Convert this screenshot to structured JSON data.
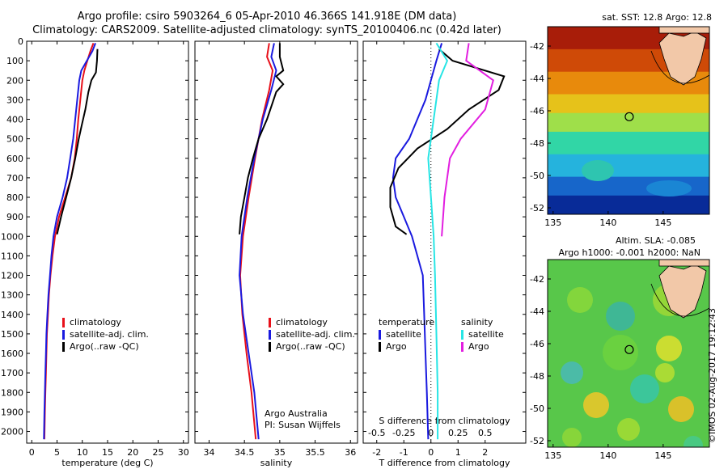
{
  "header": {
    "title_line1": "Argo profile: csiro 5903264_6 05-Apr-2010 46.366S 141.918E (DM data)",
    "title_line2": "Climatology: CARS2009. Satellite-adjusted climatology: synTS_20100406.nc (0.42d later)"
  },
  "colors": {
    "climatology": "#e8101a",
    "satellite": "#1a1adf",
    "argo": "#000000",
    "salinity_sat": "#27e5e5",
    "salinity_argo": "#e21ee0"
  },
  "chart_data": [
    {
      "type": "line",
      "id": "temperature",
      "xlabel": "temperature (deg C)",
      "ylabel": "",
      "xlim": [
        -1,
        31
      ],
      "ylim": [
        2060,
        0
      ],
      "xticks": [
        0,
        5,
        10,
        15,
        20,
        25,
        30
      ],
      "yticks": [
        0,
        100,
        200,
        300,
        400,
        500,
        600,
        700,
        800,
        900,
        1000,
        1100,
        1200,
        1300,
        1400,
        1500,
        1600,
        1700,
        1800,
        1900,
        2000
      ],
      "legend": [
        "climatology",
        "satellite-adj. clim.",
        "Argo(..raw -QC)"
      ],
      "series": [
        {
          "name": "climatology",
          "points": [
            [
              12.2,
              10
            ],
            [
              11.6,
              50
            ],
            [
              11.0,
              100
            ],
            [
              10.4,
              150
            ],
            [
              10.0,
              200
            ],
            [
              9.6,
              300
            ],
            [
              9.2,
              400
            ],
            [
              8.9,
              500
            ],
            [
              8.5,
              600
            ],
            [
              7.8,
              700
            ],
            [
              6.6,
              800
            ],
            [
              5.4,
              900
            ],
            [
              4.6,
              1000
            ],
            [
              4.1,
              1100
            ],
            [
              3.7,
              1200
            ],
            [
              3.4,
              1300
            ],
            [
              3.2,
              1400
            ],
            [
              3.0,
              1500
            ],
            [
              2.9,
              1600
            ],
            [
              2.8,
              1700
            ],
            [
              2.7,
              1800
            ],
            [
              2.6,
              1900
            ],
            [
              2.5,
              2040
            ]
          ]
        },
        {
          "name": "satellite-adj. clim.",
          "points": [
            [
              12.6,
              10
            ],
            [
              12.0,
              50
            ],
            [
              10.9,
              100
            ],
            [
              9.8,
              150
            ],
            [
              9.4,
              200
            ],
            [
              9.0,
              300
            ],
            [
              8.6,
              400
            ],
            [
              8.2,
              500
            ],
            [
              7.6,
              600
            ],
            [
              7.0,
              700
            ],
            [
              6.1,
              800
            ],
            [
              5.0,
              900
            ],
            [
              4.3,
              1000
            ],
            [
              3.9,
              1100
            ],
            [
              3.6,
              1200
            ],
            [
              3.3,
              1300
            ],
            [
              3.1,
              1400
            ],
            [
              2.9,
              1500
            ],
            [
              2.8,
              1600
            ],
            [
              2.7,
              1700
            ],
            [
              2.6,
              1800
            ],
            [
              2.5,
              1900
            ],
            [
              2.4,
              2040
            ]
          ]
        },
        {
          "name": "Argo(..raw -QC)",
          "points": [
            [
              13.0,
              40
            ],
            [
              12.9,
              100
            ],
            [
              12.7,
              160
            ],
            [
              11.8,
              200
            ],
            [
              11.2,
              260
            ],
            [
              10.6,
              350
            ],
            [
              9.9,
              430
            ],
            [
              9.3,
              500
            ],
            [
              8.6,
              600
            ],
            [
              7.8,
              700
            ],
            [
              6.8,
              800
            ],
            [
              5.8,
              900
            ],
            [
              5.0,
              990
            ]
          ]
        }
      ]
    },
    {
      "type": "line",
      "id": "salinity",
      "xlabel": "salinity",
      "xlim": [
        33.8,
        36.1
      ],
      "ylim": [
        2060,
        0
      ],
      "xticks": [
        34,
        34.5,
        35,
        35.5,
        36
      ],
      "legend": [
        "climatology",
        "satellite-adj. clim.",
        "Argo(..raw -QC)"
      ],
      "annotation": [
        "Argo Australia",
        "PI: Susan Wijffels"
      ],
      "series": [
        {
          "name": "climatology",
          "points": [
            [
              34.85,
              10
            ],
            [
              34.82,
              80
            ],
            [
              34.9,
              150
            ],
            [
              34.85,
              250
            ],
            [
              34.75,
              400
            ],
            [
              34.65,
              600
            ],
            [
              34.56,
              800
            ],
            [
              34.48,
              1000
            ],
            [
              34.44,
              1200
            ],
            [
              34.47,
              1400
            ],
            [
              34.53,
              1600
            ],
            [
              34.6,
              1800
            ],
            [
              34.66,
              2040
            ]
          ]
        },
        {
          "name": "satellite-adj. clim.",
          "points": [
            [
              34.92,
              10
            ],
            [
              34.88,
              80
            ],
            [
              34.95,
              150
            ],
            [
              34.88,
              250
            ],
            [
              34.76,
              400
            ],
            [
              34.64,
              600
            ],
            [
              34.54,
              800
            ],
            [
              34.46,
              1000
            ],
            [
              34.43,
              1200
            ],
            [
              34.48,
              1400
            ],
            [
              34.56,
              1600
            ],
            [
              34.64,
              1800
            ],
            [
              34.7,
              2040
            ]
          ]
        },
        {
          "name": "Argo(..raw -QC)",
          "points": [
            [
              35.0,
              10
            ],
            [
              35.0,
              80
            ],
            [
              35.05,
              150
            ],
            [
              34.95,
              180
            ],
            [
              35.05,
              220
            ],
            [
              34.95,
              260
            ],
            [
              34.82,
              400
            ],
            [
              34.7,
              500
            ],
            [
              34.62,
              600
            ],
            [
              34.55,
              700
            ],
            [
              34.5,
              800
            ],
            [
              34.45,
              900
            ],
            [
              34.43,
              990
            ]
          ]
        }
      ]
    },
    {
      "type": "line",
      "id": "differences",
      "xlabel": "T difference from climatology",
      "xlabel2": "S difference from climatology",
      "xlim": [
        -2.5,
        3.5
      ],
      "ylim": [
        2060,
        0
      ],
      "xticks": [
        -2,
        -1,
        0,
        1,
        2
      ],
      "xticks_top_labels": [
        "-0.5",
        "-0.25",
        "0",
        "0.25",
        "0.5"
      ],
      "legend_temperature": {
        "title": "temperature",
        "items": [
          "satellite",
          "Argo"
        ]
      },
      "legend_salinity": {
        "title": "salinity",
        "items": [
          "satellite",
          "Argo"
        ]
      },
      "series": [
        {
          "name": "satellite",
          "group": "temperature",
          "points": [
            [
              0.4,
              10
            ],
            [
              0.2,
              100
            ],
            [
              -0.2,
              300
            ],
            [
              -0.8,
              500
            ],
            [
              -1.3,
              600
            ],
            [
              -1.4,
              700
            ],
            [
              -1.3,
              800
            ],
            [
              -1.0,
              900
            ],
            [
              -0.7,
              1000
            ],
            [
              -0.5,
              1100
            ],
            [
              -0.3,
              1200
            ],
            [
              -0.25,
              1400
            ],
            [
              -0.2,
              1600
            ],
            [
              -0.15,
              1800
            ],
            [
              -0.1,
              2040
            ]
          ]
        },
        {
          "name": "Argo",
          "group": "temperature",
          "points": [
            [
              0.3,
              40
            ],
            [
              0.8,
              100
            ],
            [
              2.7,
              180
            ],
            [
              2.5,
              250
            ],
            [
              1.4,
              350
            ],
            [
              0.6,
              450
            ],
            [
              -0.5,
              550
            ],
            [
              -1.2,
              650
            ],
            [
              -1.5,
              750
            ],
            [
              -1.5,
              850
            ],
            [
              -1.3,
              950
            ],
            [
              -0.9,
              990
            ]
          ]
        },
        {
          "name": "satellite",
          "group": "salinity",
          "points": [
            [
              0.2,
              10
            ],
            [
              0.6,
              100
            ],
            [
              0.3,
              200
            ],
            [
              0.1,
              400
            ],
            [
              -0.1,
              600
            ],
            [
              0.0,
              800
            ],
            [
              0.1,
              1000
            ],
            [
              0.15,
              1200
            ],
            [
              0.2,
              1500
            ],
            [
              0.25,
              1800
            ],
            [
              0.25,
              2040
            ]
          ]
        },
        {
          "name": "Argo",
          "group": "salinity",
          "points": [
            [
              1.4,
              10
            ],
            [
              1.3,
              100
            ],
            [
              2.3,
              200
            ],
            [
              2.0,
              350
            ],
            [
              1.1,
              500
            ],
            [
              0.7,
              600
            ],
            [
              0.5,
              800
            ],
            [
              0.4,
              1000
            ]
          ]
        }
      ]
    }
  ],
  "maps": [
    {
      "id": "sst-map",
      "label": "sat. SST: 12.8 Argo: 12.8",
      "xticks": [
        "135",
        "140",
        "145"
      ],
      "yticks": [
        "-42",
        "-44",
        "-46",
        "-48",
        "-50",
        "-52"
      ]
    },
    {
      "id": "sla-map",
      "label_line1": "Altim. SLA: -0.085",
      "label_line2": "Argo h1000: -0.001 h2000: NaN",
      "xticks": [
        "135",
        "140",
        "145"
      ],
      "yticks": [
        "-42",
        "-44",
        "-46",
        "-48",
        "-50",
        "-52"
      ]
    }
  ],
  "stamp": "©IMOS 02-Aug-2017 19:12:43"
}
